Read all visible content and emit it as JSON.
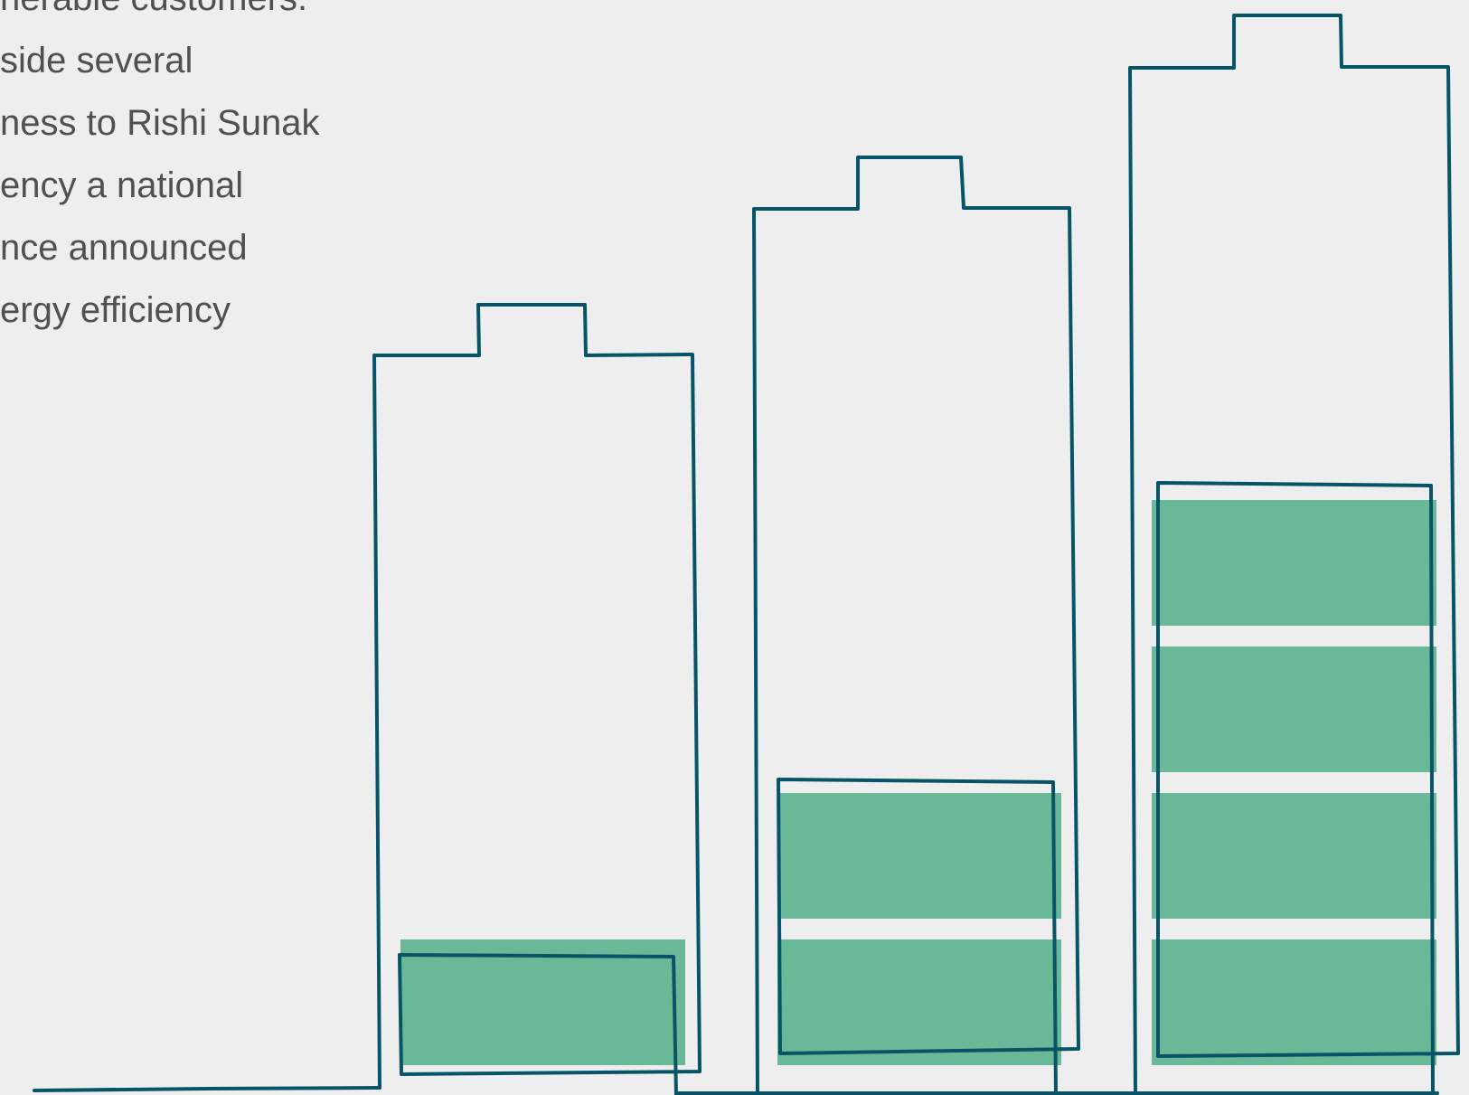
{
  "article": {
    "lines": [
      "nerable customers.",
      "side several",
      "ness to Rishi Sunak",
      "ency a national",
      "nce announced",
      "ergy efficiency"
    ]
  },
  "illustration": {
    "outline_color": "#075466",
    "fill_color": "#69b998",
    "batteries": [
      {
        "charge_cells": 1,
        "total_cells": 1
      },
      {
        "charge_cells": 2,
        "total_cells": 2
      },
      {
        "charge_cells": 4,
        "total_cells": 4
      }
    ]
  }
}
